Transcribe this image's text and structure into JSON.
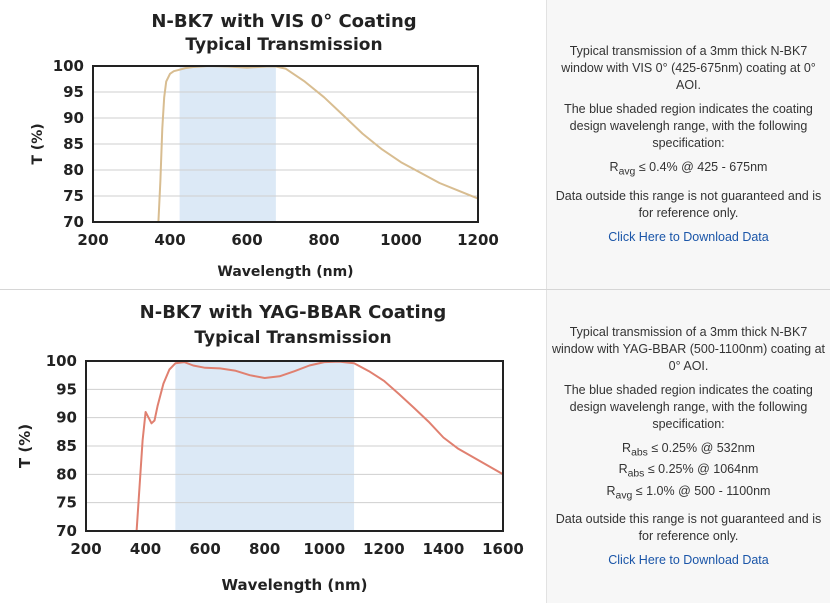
{
  "charts": [
    {
      "title_line1": "N-BK7 with VIS 0° Coating",
      "title_line2": "Typical Transmission",
      "description": [
        "Typical transmission of a 3mm thick N-BK7 window with VIS 0° (425-675nm) coating at 0° AOI.",
        "The blue shaded region indicates the coating design wavelengh range, with the following specification:"
      ],
      "specs": [
        {
          "symbol": "R",
          "sub": "avg",
          "text": " ≤ 0.4% @ 425 - 675nm"
        }
      ],
      "note": "Data outside this range is not guaranteed and is for reference only.",
      "download_label": "Click Here to Download Data"
    },
    {
      "title_line1": "N-BK7 with YAG-BBAR Coating",
      "title_line2": "Typical Transmission",
      "description": [
        "Typical transmission of a 3mm thick N-BK7 window with YAG-BBAR (500-1100nm) coating at 0° AOI.",
        "The blue shaded region indicates the coating design wavelengh range, with the following specification:"
      ],
      "specs": [
        {
          "symbol": "R",
          "sub": "abs",
          "text": " ≤ 0.25% @ 532nm"
        },
        {
          "symbol": "R",
          "sub": "abs",
          "text": " ≤ 0.25% @ 1064nm"
        },
        {
          "symbol": "R",
          "sub": "avg",
          "text": " ≤ 1.0% @ 500 - 1100nm"
        }
      ],
      "note": "Data outside this range is not guaranteed and is for reference only.",
      "download_label": "Click Here to Download Data"
    }
  ],
  "chart_data": [
    {
      "type": "line",
      "title": "N-BK7 with VIS 0° Coating Typical Transmission",
      "xlabel": "Wavelength (nm)",
      "ylabel": "T (%)",
      "xlim": [
        200,
        1200
      ],
      "ylim": [
        70,
        100
      ],
      "xticks": [
        200,
        400,
        600,
        800,
        1000,
        1200
      ],
      "yticks": [
        70,
        75,
        80,
        85,
        90,
        95,
        100
      ],
      "shaded_range": [
        425,
        675
      ],
      "shade_color": "#dce9f6",
      "line_color": "#d8bd91",
      "grid": true,
      "series": [
        {
          "x": [
            370,
            375,
            380,
            385,
            390,
            400,
            410,
            420,
            440,
            460,
            500,
            550,
            600,
            650,
            675,
            700,
            750,
            800,
            850,
            900,
            950,
            1000,
            1050,
            1100,
            1150,
            1200
          ],
          "values": [
            70,
            78,
            88,
            94,
            97,
            98.5,
            99,
            99.2,
            99.6,
            99.8,
            100,
            99.9,
            99.7,
            99.9,
            99.9,
            99.5,
            97,
            94,
            90.5,
            87,
            84,
            81.5,
            79.5,
            77.5,
            76,
            74.5
          ]
        }
      ]
    },
    {
      "type": "line",
      "title": "N-BK7 with YAG-BBAR Coating Typical Transmission",
      "xlabel": "Wavelength (nm)",
      "ylabel": "T (%)",
      "xlim": [
        200,
        1600
      ],
      "ylim": [
        70,
        100
      ],
      "xticks": [
        200,
        400,
        600,
        800,
        1000,
        1200,
        1400,
        1600
      ],
      "yticks": [
        70,
        75,
        80,
        85,
        90,
        95,
        100
      ],
      "shaded_range": [
        500,
        1100
      ],
      "shade_color": "#dce9f6",
      "line_color": "#e08070",
      "grid": true,
      "series": [
        {
          "x": [
            370,
            380,
            390,
            400,
            410,
            420,
            430,
            440,
            460,
            480,
            500,
            530,
            560,
            600,
            650,
            700,
            750,
            800,
            850,
            900,
            950,
            1000,
            1050,
            1100,
            1150,
            1200,
            1250,
            1300,
            1350,
            1400,
            1450,
            1500,
            1550,
            1600
          ],
          "values": [
            70,
            78,
            86,
            91,
            90,
            89,
            89.5,
            92,
            96,
            98.5,
            99.6,
            99.8,
            99.2,
            98.8,
            98.7,
            98.3,
            97.5,
            97,
            97.3,
            98.2,
            99.2,
            99.8,
            99.9,
            99.6,
            98.2,
            96.5,
            94.2,
            91.8,
            89.3,
            86.5,
            84.5,
            83,
            81.5,
            80
          ]
        }
      ]
    }
  ]
}
